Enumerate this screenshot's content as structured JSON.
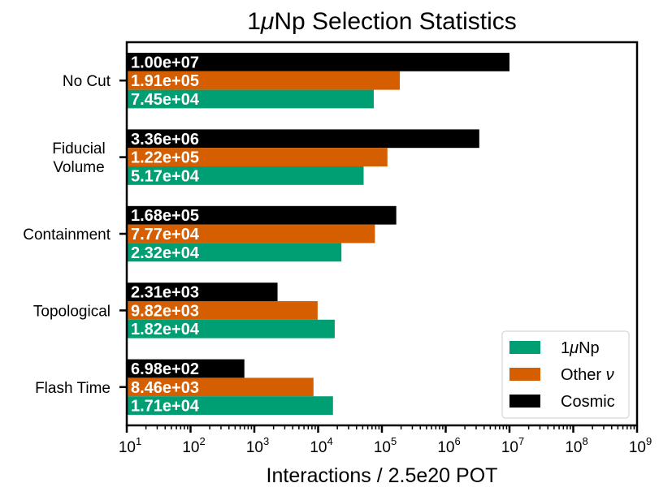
{
  "chart_data": {
    "type": "bar",
    "orientation": "horizontal",
    "title_prefix": "1",
    "title_mu": "μ",
    "title_suffix": "Np Selection Statistics",
    "xlabel": "Interactions / 2.5e20 POT",
    "ylabel": "",
    "xscale": "log",
    "xlim": [
      10,
      1000000000
    ],
    "x_tick_exponents": [
      1,
      2,
      3,
      4,
      5,
      6,
      7,
      8,
      9
    ],
    "x_tick_base": "10",
    "grid": false,
    "legend_position": "bottom-right",
    "categories": [
      {
        "lines": [
          "No Cut"
        ]
      },
      {
        "lines": [
          "Fiducial",
          "Volume"
        ]
      },
      {
        "lines": [
          "Containment"
        ]
      },
      {
        "lines": [
          "Topological"
        ]
      },
      {
        "lines": [
          "Flash Time"
        ]
      }
    ],
    "series": [
      {
        "name_prefix": "1",
        "name_mu": "μ",
        "name_suffix": "Np",
        "color": "#009e73",
        "values": [
          74500,
          51700,
          23200,
          18200,
          17100
        ],
        "labels": [
          "7.45e+04",
          "5.17e+04",
          "2.32e+04",
          "1.82e+04",
          "1.71e+04"
        ]
      },
      {
        "name_prefix": "Other ",
        "name_mu": "ν",
        "name_suffix": "",
        "color": "#d55e00",
        "values": [
          191000,
          122000,
          77700,
          9820,
          8460
        ],
        "labels": [
          "1.91e+05",
          "1.22e+05",
          "7.77e+04",
          "9.82e+03",
          "8.46e+03"
        ]
      },
      {
        "name_prefix": "Cosmic",
        "name_mu": "",
        "name_suffix": "",
        "color": "#000000",
        "values": [
          10000000,
          3360000,
          168000,
          2310,
          698
        ],
        "labels": [
          "1.00e+07",
          "3.36e+06",
          "1.68e+05",
          "2.31e+03",
          "6.98e+02"
        ]
      }
    ]
  }
}
